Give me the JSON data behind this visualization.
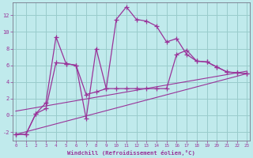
{
  "xlabel": "Windchill (Refroidissement éolien,°C)",
  "background_color": "#c0eaec",
  "grid_color": "#99cccc",
  "line_color": "#993399",
  "x_ticks": [
    0,
    1,
    2,
    3,
    4,
    5,
    6,
    7,
    8,
    9,
    10,
    11,
    12,
    13,
    14,
    15,
    16,
    17,
    18,
    19,
    20,
    21,
    22,
    23
  ],
  "ylim": [
    -3.0,
    13.5
  ],
  "xlim": [
    -0.3,
    23.3
  ],
  "yticks": [
    -2,
    0,
    2,
    4,
    6,
    8,
    10,
    12
  ],
  "line1_x": [
    0,
    1,
    2,
    3,
    4,
    5,
    6,
    7,
    8,
    9,
    10,
    11,
    12,
    13,
    14,
    15,
    16,
    17,
    18,
    19,
    20,
    21,
    22,
    23
  ],
  "line1_y": [
    -2.3,
    -2.3,
    0.2,
    0.8,
    6.3,
    6.2,
    6.0,
    -0.4,
    8.0,
    3.2,
    11.5,
    13.0,
    11.5,
    11.3,
    10.7,
    8.8,
    9.2,
    7.3,
    6.5,
    6.4,
    5.8,
    5.2,
    5.1,
    5.0
  ],
  "line2_x": [
    0,
    1,
    2,
    3,
    4,
    5,
    6,
    7,
    8,
    9,
    10,
    11,
    12,
    13,
    14,
    15,
    16,
    17,
    18,
    19,
    20,
    21,
    22,
    23
  ],
  "line2_y": [
    -2.3,
    -2.3,
    0.2,
    1.5,
    9.4,
    6.2,
    6.0,
    2.5,
    2.8,
    3.2,
    3.2,
    3.2,
    3.2,
    3.2,
    3.2,
    3.2,
    7.3,
    7.8,
    6.5,
    6.4,
    5.8,
    5.2,
    5.1,
    5.0
  ],
  "line3_x": [
    0,
    23
  ],
  "line3_y": [
    -2.3,
    5.0
  ],
  "line4_x": [
    0,
    23
  ],
  "line4_y": [
    0.5,
    5.3
  ]
}
